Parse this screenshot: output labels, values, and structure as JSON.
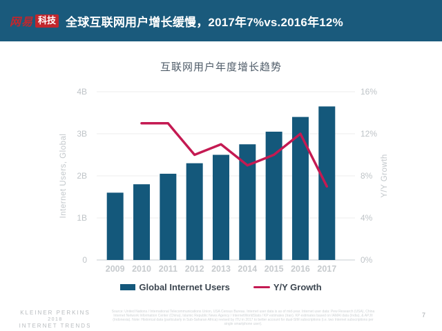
{
  "header": {
    "bg_color": "#1A5A7C",
    "logo": {
      "brand_text": "网易",
      "brand_color": "#C1272D",
      "box_text": "科技",
      "box_bg": "#C1272D"
    },
    "title": "全球互联网用户增长缓慢，2017年7%vs.2016年12%"
  },
  "chart_data": {
    "type": "bar",
    "title": "互联网用户年度增长趋势",
    "categories": [
      "2009",
      "2010",
      "2011",
      "2012",
      "2013",
      "2014",
      "2015",
      "2016",
      "2017"
    ],
    "series": [
      {
        "name": "Global Internet Users",
        "type": "bar",
        "axis": "left",
        "color": "#14587B",
        "values": [
          1.6,
          1.8,
          2.05,
          2.3,
          2.5,
          2.75,
          3.05,
          3.4,
          3.65
        ]
      },
      {
        "name": "Y/Y Growth",
        "type": "line",
        "axis": "right",
        "color": "#C41A52",
        "values": [
          null,
          13,
          13,
          10,
          11,
          9,
          10,
          12,
          7
        ]
      }
    ],
    "left_axis": {
      "label": "Internet Users, Global",
      "min": 0,
      "max": 4,
      "ticks": [
        "0",
        "1B",
        "2B",
        "3B",
        "4B"
      ]
    },
    "right_axis": {
      "label": "Y/Y Growth",
      "min": 0,
      "max": 16,
      "ticks": [
        "0%",
        "4%",
        "8%",
        "12%",
        "16%"
      ]
    },
    "grid": true,
    "legend_position": "bottom",
    "colors": {
      "gridline": "#ececec",
      "axis_line": "#d9dde0",
      "tick_label": "#bec3c7",
      "x_label": "#c6cacd",
      "axis_title": "#c2c7cb"
    }
  },
  "footer": {
    "branding_line1": "KLEINER PERKINS",
    "branding_line2": "2018",
    "branding_line3": "INTERNET TRENDS",
    "source": "Source: United Nations / International Telecommunications Union, USA Census Bureau. Internet user data is as of mid-year. Internet user data: Pew Research (USA), China Internet Network Information Center (China), Islamic Republic News Agency / InternetWorldStats / KP estimates (Iran). KP estimates based on IAMAI data (India), & APJII (Indonesia). Note: Historical data (particularly in Sub-Saharan Africa) revised by ITU in 2017 to better account for dual-SIM subscriptions (i.e. two Internet subscriptions per single smartphone user).",
    "page_number": "7"
  }
}
